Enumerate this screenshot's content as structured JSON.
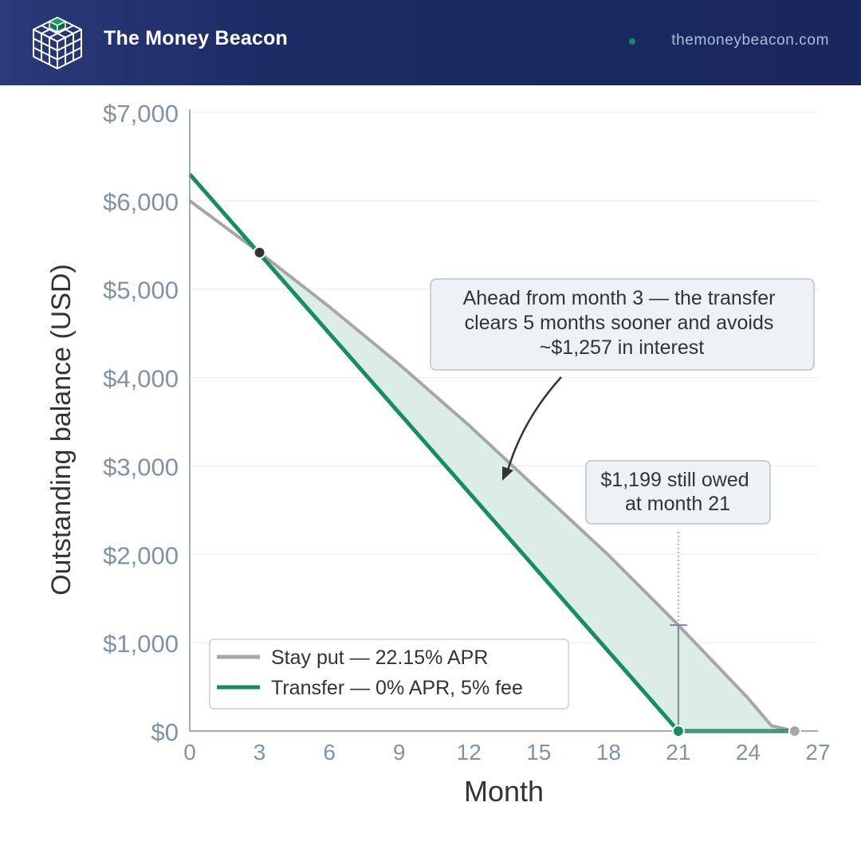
{
  "header": {
    "brand": "The Money Beacon",
    "url": "themoneybeacon.com"
  },
  "colors": {
    "header_bg": "#1c2a63",
    "stay_line": "#a6a6a6",
    "transfer_line": "#1a8c63",
    "savings_fill": "#dcede6",
    "axis_text": "#7f93a3"
  },
  "chart_data": {
    "type": "line",
    "xlabel": "Month",
    "ylabel": "Outstanding balance (USD)",
    "xlim": [
      0,
      27
    ],
    "ylim": [
      0,
      7000
    ],
    "x_ticks": [
      "0",
      "3",
      "6",
      "9",
      "12",
      "15",
      "18",
      "21",
      "24",
      "27"
    ],
    "y_ticks": [
      "$0",
      "$1,000",
      "$2,000",
      "$3,000",
      "$4,000",
      "$5,000",
      "$6,000",
      "$7,000"
    ],
    "grid": "horizontal",
    "legend_position": "bottom-left",
    "series": [
      {
        "name": "Stay put — 22.15% APR",
        "color": "#a6a6a6",
        "x": [
          0,
          3,
          6,
          9,
          12,
          15,
          18,
          21,
          24,
          25,
          26
        ],
        "y": [
          6000,
          5415,
          4800,
          4150,
          3460,
          2725,
          1990,
          1199,
          370,
          60,
          0
        ]
      },
      {
        "name": "Transfer — 0% APR, 5% fee",
        "color": "#1a8c63",
        "x": [
          0,
          21
        ],
        "y": [
          6300,
          0
        ]
      }
    ],
    "markers": [
      {
        "series": "crossover",
        "x": 3,
        "y": 5415
      },
      {
        "series": "transfer-payoff",
        "x": 21,
        "y": 0
      },
      {
        "series": "stay-payoff",
        "x": 26,
        "y": 0
      }
    ],
    "annotations": [
      {
        "id": "savings",
        "lines": [
          "Ahead from month 3 — the transfer",
          "clears 5 months sooner and avoids",
          "~$1,257 in interest"
        ]
      },
      {
        "id": "owed",
        "lines": [
          "$1,199 still owed",
          "at month 21"
        ]
      }
    ],
    "gap_marker": {
      "x": 21,
      "y_low": 0,
      "y_high": 1199
    }
  }
}
